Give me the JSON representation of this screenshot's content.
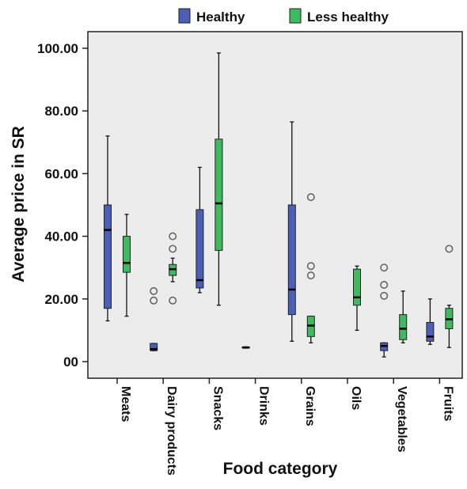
{
  "chart_data": {
    "type": "boxplot",
    "title": "",
    "xlabel": "Food category",
    "ylabel": "Average price in SR",
    "ylim": [
      -6,
      106
    ],
    "yticks": [
      0,
      20,
      40,
      60,
      80,
      100
    ],
    "ytick_labels": [
      "00",
      "20.00",
      "40.00",
      "60.00",
      "80.00",
      "100.00"
    ],
    "grid": false,
    "legend": {
      "placement": "top",
      "entries": [
        {
          "name": "Healthy",
          "color": "#4a5fb5"
        },
        {
          "name": "Less healthy",
          "color": "#3dbb5e"
        }
      ]
    },
    "categories": [
      "Meats",
      "Dairy products",
      "Snacks",
      "Drinks",
      "Grains",
      "Oils",
      "Vegetables",
      "Fruits"
    ],
    "series": [
      {
        "name": "Healthy",
        "color": "#4a5fb5",
        "boxes": [
          {
            "category": "Meats",
            "min": 13,
            "q1": 17,
            "median": 42,
            "q3": 50,
            "max": 72,
            "outliers": []
          },
          {
            "category": "Dairy products",
            "min": 3.5,
            "q1": 3.5,
            "median": 4,
            "q3": 5.8,
            "max": 5.8,
            "outliers": [
              19.5,
              22.5
            ]
          },
          {
            "category": "Snacks",
            "min": 22,
            "q1": 23.5,
            "median": 26,
            "q3": 48.5,
            "max": 62,
            "outliers": []
          },
          {
            "category": "Drinks",
            "min": 4.3,
            "q1": 4.3,
            "median": 4.5,
            "q3": 4.7,
            "max": 4.7,
            "outliers": []
          },
          {
            "category": "Grains",
            "min": 6.5,
            "q1": 15,
            "median": 23,
            "q3": 50,
            "max": 76.5,
            "outliers": []
          },
          {
            "category": "Vegetables",
            "min": 1.5,
            "q1": 3.5,
            "median": 5,
            "q3": 6,
            "max": 6,
            "outliers": [
              21,
              24.5,
              30
            ]
          },
          {
            "category": "Fruits",
            "min": 5.5,
            "q1": 6.5,
            "median": 8,
            "q3": 12.5,
            "max": 20,
            "outliers": []
          }
        ]
      },
      {
        "name": "Less healthy",
        "color": "#3dbb5e",
        "boxes": [
          {
            "category": "Meats",
            "min": 14.5,
            "q1": 28.5,
            "median": 31.5,
            "q3": 40,
            "max": 47,
            "outliers": []
          },
          {
            "category": "Dairy products",
            "min": 25.5,
            "q1": 27.5,
            "median": 29.5,
            "q3": 31,
            "max": 33,
            "outliers": [
              19.5,
              36,
              40
            ]
          },
          {
            "category": "Snacks",
            "min": 18,
            "q1": 35.5,
            "median": 50.5,
            "q3": 71,
            "max": 98.5,
            "outliers": []
          },
          {
            "category": "Grains",
            "min": 6,
            "q1": 8,
            "median": 11.5,
            "q3": 14.5,
            "max": 14.5,
            "outliers": [
              27.5,
              30.5,
              52.5
            ]
          },
          {
            "category": "Oils",
            "min": 10,
            "q1": 18,
            "median": 20.5,
            "q3": 29.5,
            "max": 30.5,
            "outliers": []
          },
          {
            "category": "Vegetables",
            "min": 6,
            "q1": 7,
            "median": 10.5,
            "q3": 15,
            "max": 22.5,
            "outliers": []
          },
          {
            "category": "Fruits",
            "min": 4.5,
            "q1": 10.5,
            "median": 13.5,
            "q3": 17,
            "max": 18,
            "outliers": [
              36
            ]
          }
        ]
      }
    ]
  }
}
